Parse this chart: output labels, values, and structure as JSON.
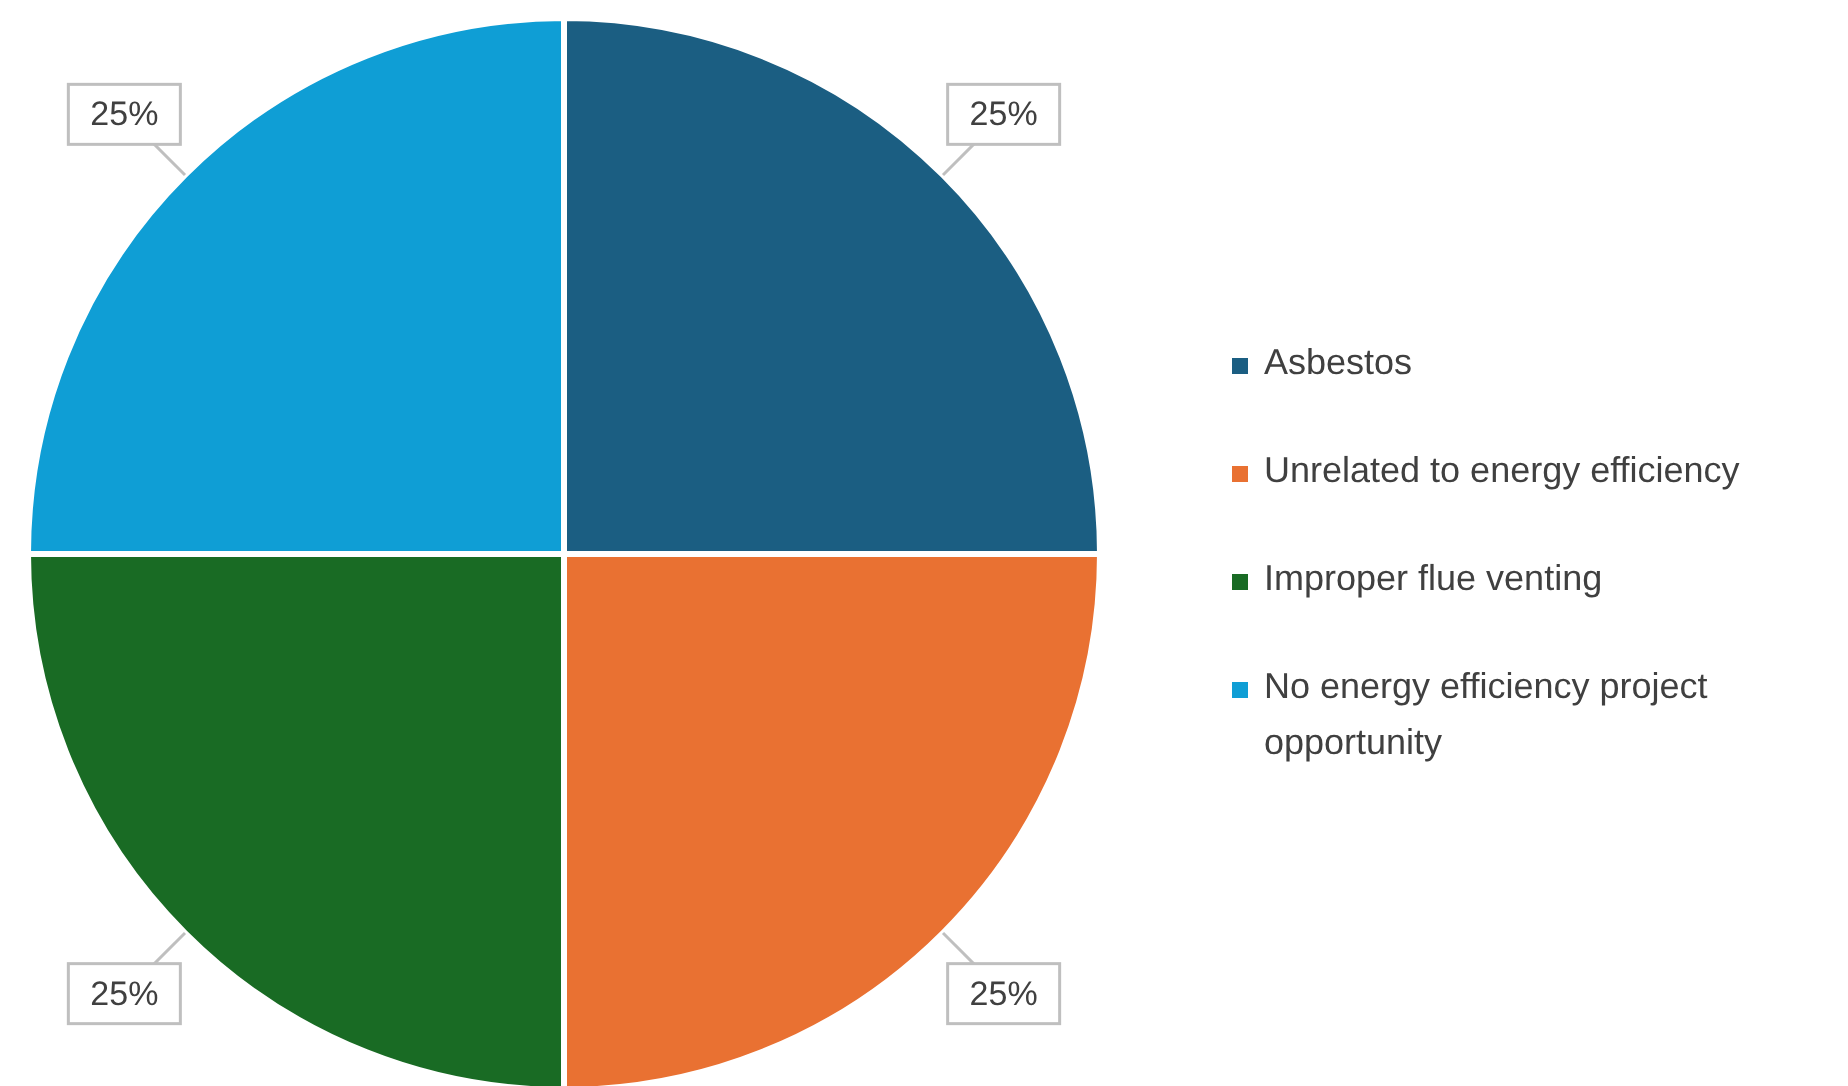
{
  "chart_data": {
    "type": "pie",
    "categories": [
      "Asbestos",
      "Unrelated to energy efficiency",
      "Improper flue venting",
      "No energy efficiency project opportunity"
    ],
    "values": [
      25,
      25,
      25,
      25
    ],
    "colors": [
      "#1b5e82",
      "#e97132",
      "#196b24",
      "#0f9ed5"
    ],
    "value_labels": [
      "25%",
      "25%",
      "25%",
      "25%"
    ],
    "legend": "right"
  }
}
